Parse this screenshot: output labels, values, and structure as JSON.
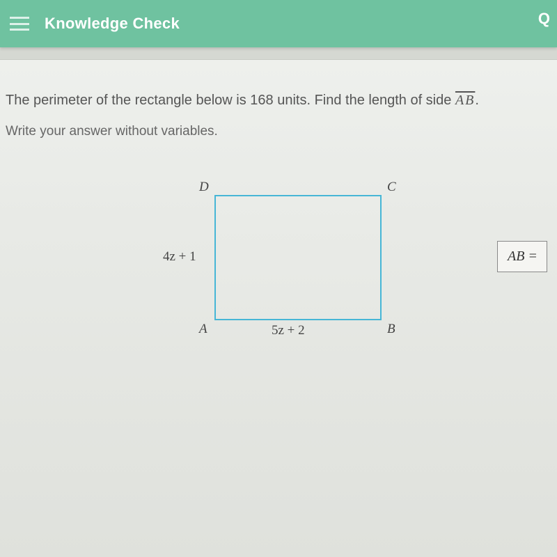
{
  "header": {
    "title": "Knowledge Check",
    "right_fragment": "Q"
  },
  "question": {
    "line1_prefix": "The perimeter of the rectangle below is 168 units. Find the length of side ",
    "line1_segment": "AB",
    "line1_suffix": ".",
    "line2": "Write your answer without variables."
  },
  "figure": {
    "vertices": {
      "D": "D",
      "C": "C",
      "A": "A",
      "B": "B"
    },
    "side_left": "4z + 1",
    "side_bottom": "5z + 2",
    "rect_border_color": "#46b6d6"
  },
  "answer": {
    "label": "AB ="
  },
  "colors": {
    "header_bg": "#6fc2a0",
    "text": "#4a4a4a"
  }
}
